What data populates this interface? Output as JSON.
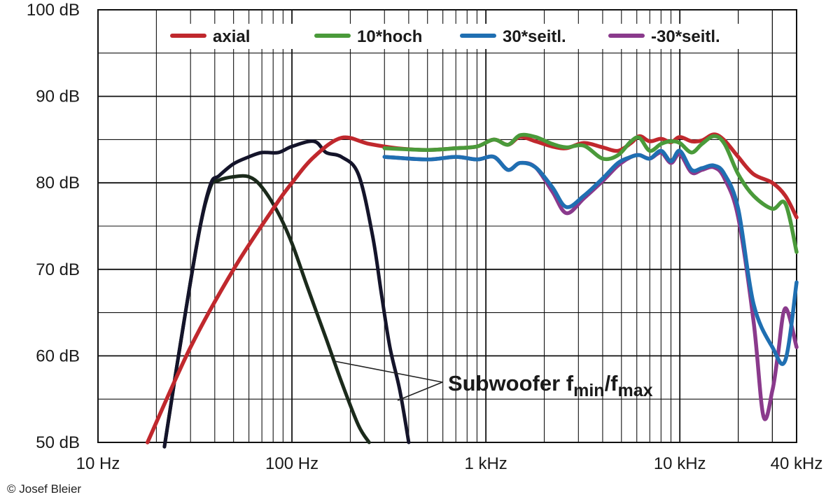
{
  "chart_data": {
    "type": "line",
    "x_scale": "log",
    "xlim": [
      10,
      40000
    ],
    "ylim": [
      50,
      100
    ],
    "grid": true,
    "y_ticks": [
      {
        "value": 100,
        "label": "100 dB"
      },
      {
        "value": 90,
        "label": "90 dB"
      },
      {
        "value": 80,
        "label": "80 dB"
      },
      {
        "value": 70,
        "label": "70 dB"
      },
      {
        "value": 60,
        "label": "60 dB"
      },
      {
        "value": 50,
        "label": "50 dB"
      }
    ],
    "x_ticks": [
      {
        "value": 10,
        "label": "10 Hz"
      },
      {
        "value": 100,
        "label": "100 Hz"
      },
      {
        "value": 1000,
        "label": "1 kHz"
      },
      {
        "value": 10000,
        "label": "10 kHz"
      },
      {
        "value": 40000,
        "label": "40 kHz"
      }
    ],
    "legend_position": "top",
    "series": [
      {
        "name": "axial",
        "color": "#c0282d",
        "points": [
          [
            18,
            50
          ],
          [
            30,
            61
          ],
          [
            50,
            70
          ],
          [
            80,
            77
          ],
          [
            100,
            80
          ],
          [
            130,
            83
          ],
          [
            180,
            85.2
          ],
          [
            250,
            84.5
          ],
          [
            350,
            84
          ],
          [
            500,
            83.8
          ],
          [
            700,
            84
          ],
          [
            900,
            84.2
          ],
          [
            1100,
            85
          ],
          [
            1300,
            84.4
          ],
          [
            1500,
            85.3
          ],
          [
            1800,
            84.8
          ],
          [
            2200,
            84.2
          ],
          [
            2600,
            84
          ],
          [
            3200,
            84.6
          ],
          [
            4000,
            84.1
          ],
          [
            4800,
            83.7
          ],
          [
            5600,
            84.6
          ],
          [
            6200,
            85.4
          ],
          [
            7000,
            84.8
          ],
          [
            8000,
            85.1
          ],
          [
            9000,
            84.7
          ],
          [
            10000,
            85.3
          ],
          [
            11500,
            84.8
          ],
          [
            13000,
            84.9
          ],
          [
            15000,
            85.6
          ],
          [
            17000,
            84.9
          ],
          [
            20000,
            83
          ],
          [
            24000,
            81
          ],
          [
            30000,
            80
          ],
          [
            35000,
            78.5
          ],
          [
            40000,
            76
          ]
        ]
      },
      {
        "name": "10*hoch",
        "color": "#4a9a3a",
        "points": [
          [
            300,
            84
          ],
          [
            500,
            83.8
          ],
          [
            700,
            84
          ],
          [
            900,
            84.2
          ],
          [
            1100,
            85
          ],
          [
            1300,
            84.4
          ],
          [
            1500,
            85.5
          ],
          [
            1800,
            85.3
          ],
          [
            2200,
            84.5
          ],
          [
            2600,
            84.1
          ],
          [
            3200,
            84.3
          ],
          [
            4000,
            82.8
          ],
          [
            4800,
            83.2
          ],
          [
            5600,
            84.8
          ],
          [
            6200,
            85.2
          ],
          [
            7000,
            83.7
          ],
          [
            8000,
            84.5
          ],
          [
            9000,
            84.8
          ],
          [
            10000,
            84.6
          ],
          [
            11500,
            83.5
          ],
          [
            13000,
            84.5
          ],
          [
            15000,
            85.4
          ],
          [
            17000,
            84.5
          ],
          [
            20000,
            81
          ],
          [
            24000,
            78.5
          ],
          [
            30000,
            77
          ],
          [
            35000,
            77.6
          ],
          [
            40000,
            72
          ]
        ]
      },
      {
        "name": "30*seitl.",
        "color": "#1f6fb2",
        "points": [
          [
            300,
            83
          ],
          [
            500,
            82.7
          ],
          [
            700,
            83
          ],
          [
            900,
            82.7
          ],
          [
            1100,
            83
          ],
          [
            1300,
            81.5
          ],
          [
            1500,
            82.3
          ],
          [
            1800,
            81.8
          ],
          [
            2200,
            79.5
          ],
          [
            2600,
            77.2
          ],
          [
            3200,
            78.5
          ],
          [
            4000,
            80.5
          ],
          [
            4800,
            82.3
          ],
          [
            5600,
            83
          ],
          [
            6200,
            83.2
          ],
          [
            7000,
            82.8
          ],
          [
            8000,
            83.7
          ],
          [
            9000,
            82.5
          ],
          [
            10000,
            83.7
          ],
          [
            11500,
            81.5
          ],
          [
            13000,
            81.7
          ],
          [
            15000,
            82
          ],
          [
            17000,
            81
          ],
          [
            20000,
            77
          ],
          [
            24000,
            66
          ],
          [
            30000,
            61
          ],
          [
            35000,
            59.5
          ],
          [
            40000,
            68.5
          ]
        ]
      },
      {
        "name": "-30*seitl.",
        "color": "#8a3a8c",
        "points": [
          [
            300,
            83
          ],
          [
            500,
            82.7
          ],
          [
            700,
            83
          ],
          [
            900,
            82.7
          ],
          [
            1100,
            83
          ],
          [
            1300,
            81.5
          ],
          [
            1500,
            82.3
          ],
          [
            1800,
            81.8
          ],
          [
            2200,
            79
          ],
          [
            2600,
            76.5
          ],
          [
            3200,
            78.2
          ],
          [
            4000,
            80.2
          ],
          [
            4800,
            82
          ],
          [
            5600,
            83
          ],
          [
            6200,
            83.2
          ],
          [
            7000,
            82.8
          ],
          [
            8000,
            83.5
          ],
          [
            9000,
            82.3
          ],
          [
            10000,
            83.3
          ],
          [
            11500,
            81.2
          ],
          [
            13000,
            81.5
          ],
          [
            15000,
            81.8
          ],
          [
            17000,
            80.5
          ],
          [
            20000,
            76
          ],
          [
            24000,
            64
          ],
          [
            27000,
            53
          ],
          [
            30000,
            56
          ],
          [
            32000,
            60
          ],
          [
            35000,
            65.5
          ],
          [
            40000,
            61
          ]
        ]
      },
      {
        "color": "#1b2a1b",
        "points": [
          [
            22,
            49.5
          ],
          [
            26,
            60
          ],
          [
            33,
            74
          ],
          [
            38,
            79.5
          ],
          [
            42,
            80.3
          ],
          [
            50,
            80.7
          ],
          [
            60,
            80.7
          ],
          [
            70,
            79.5
          ],
          [
            85,
            76.5
          ],
          [
            100,
            73
          ],
          [
            120,
            68
          ],
          [
            150,
            62
          ],
          [
            180,
            57
          ],
          [
            220,
            52
          ],
          [
            250,
            50
          ]
        ]
      },
      {
        "color": "#14142a",
        "points": [
          [
            22,
            49.5
          ],
          [
            26,
            60
          ],
          [
            33,
            74
          ],
          [
            38,
            79.8
          ],
          [
            42,
            80.8
          ],
          [
            50,
            82.2
          ],
          [
            60,
            83
          ],
          [
            70,
            83.5
          ],
          [
            85,
            83.5
          ],
          [
            100,
            84.2
          ],
          [
            130,
            84.8
          ],
          [
            150,
            83.5
          ],
          [
            180,
            83
          ],
          [
            220,
            81
          ],
          [
            260,
            74
          ],
          [
            290,
            67
          ],
          [
            320,
            61
          ],
          [
            360,
            56
          ],
          [
            400,
            50
          ]
        ]
      }
    ],
    "annotation": {
      "text": "Subwoofer f",
      "sub1": "min",
      "sep": "/f",
      "sub2": "max"
    }
  },
  "copyright": "© Josef Bleier"
}
